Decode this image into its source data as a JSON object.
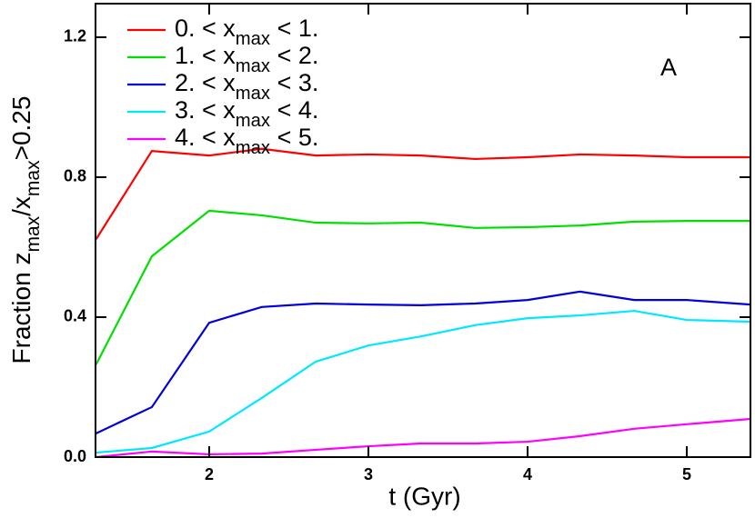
{
  "chart_data": {
    "type": "line",
    "x_label": "t (Gyr)",
    "y_label": "Fraction zmax/xmax>0.25",
    "annotation": "A",
    "x": [
      1.29,
      1.64,
      2.0,
      2.33,
      2.67,
      3.0,
      3.33,
      3.67,
      4.0,
      4.33,
      4.67,
      5.0,
      5.4
    ],
    "series": [
      {
        "name": "0. < xmax < 1.",
        "color": "#ff0000",
        "values": [
          0.623,
          0.875,
          0.862,
          0.881,
          0.862,
          0.865,
          0.862,
          0.852,
          0.857,
          0.865,
          0.862,
          0.857,
          0.857
        ]
      },
      {
        "name": "1. < xmax < 2.",
        "color": "#00e000",
        "values": [
          0.265,
          0.574,
          0.704,
          0.691,
          0.67,
          0.668,
          0.67,
          0.655,
          0.657,
          0.662,
          0.673,
          0.675,
          0.675
        ]
      },
      {
        "name": "2. < xmax < 3.",
        "color": "#0000dd",
        "values": [
          0.068,
          0.143,
          0.384,
          0.429,
          0.439,
          0.436,
          0.434,
          0.439,
          0.449,
          0.473,
          0.449,
          0.449,
          0.436
        ]
      },
      {
        "name": "3. < xmax < 4.",
        "color": "#00e8ff",
        "values": [
          0.013,
          0.026,
          0.073,
          0.169,
          0.273,
          0.319,
          0.345,
          0.377,
          0.397,
          0.405,
          0.418,
          0.392,
          0.387
        ]
      },
      {
        "name": "4. < xmax < 5.",
        "color": "#ff00ff",
        "values": [
          0,
          0.016,
          0.008,
          0.01,
          0.021,
          0.031,
          0.039,
          0.039,
          0.044,
          0.06,
          0.081,
          0.094,
          0.109
        ]
      }
    ],
    "xlim": [
      1.286,
      5.4
    ],
    "xticks": [
      2,
      3,
      4,
      5
    ],
    "ylim": [
      0,
      1.296
    ],
    "yticks": [
      {
        "value": 0,
        "label": "0.0"
      },
      0.4,
      0.8,
      1.2
    ]
  }
}
